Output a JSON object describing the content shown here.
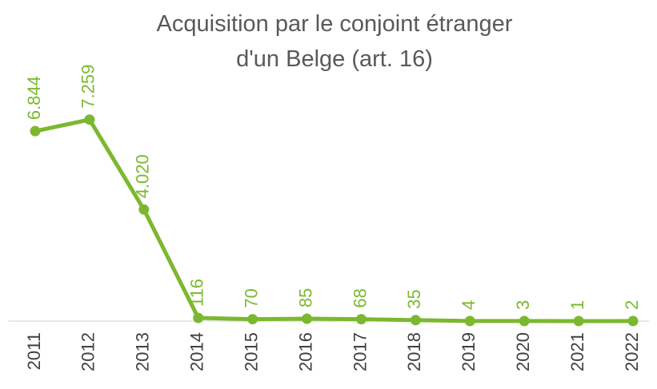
{
  "chart_data": {
    "type": "line",
    "title": "Acquisition par le conjoint étranger d'un Belge (art. 16)",
    "categories": [
      "2011",
      "2012",
      "2013",
      "2014",
      "2015",
      "2016",
      "2017",
      "2018",
      "2019",
      "2020",
      "2021",
      "2022"
    ],
    "values": [
      6844,
      7259,
      4020,
      116,
      70,
      85,
      68,
      35,
      4,
      3,
      1,
      2
    ],
    "value_labels": [
      "6.844",
      "7.259",
      "4.020",
      "116",
      "70",
      "85",
      "68",
      "35",
      "4",
      "3",
      "1",
      "2"
    ],
    "color": "#7cb82f",
    "ylim": [
      0,
      8000
    ]
  }
}
